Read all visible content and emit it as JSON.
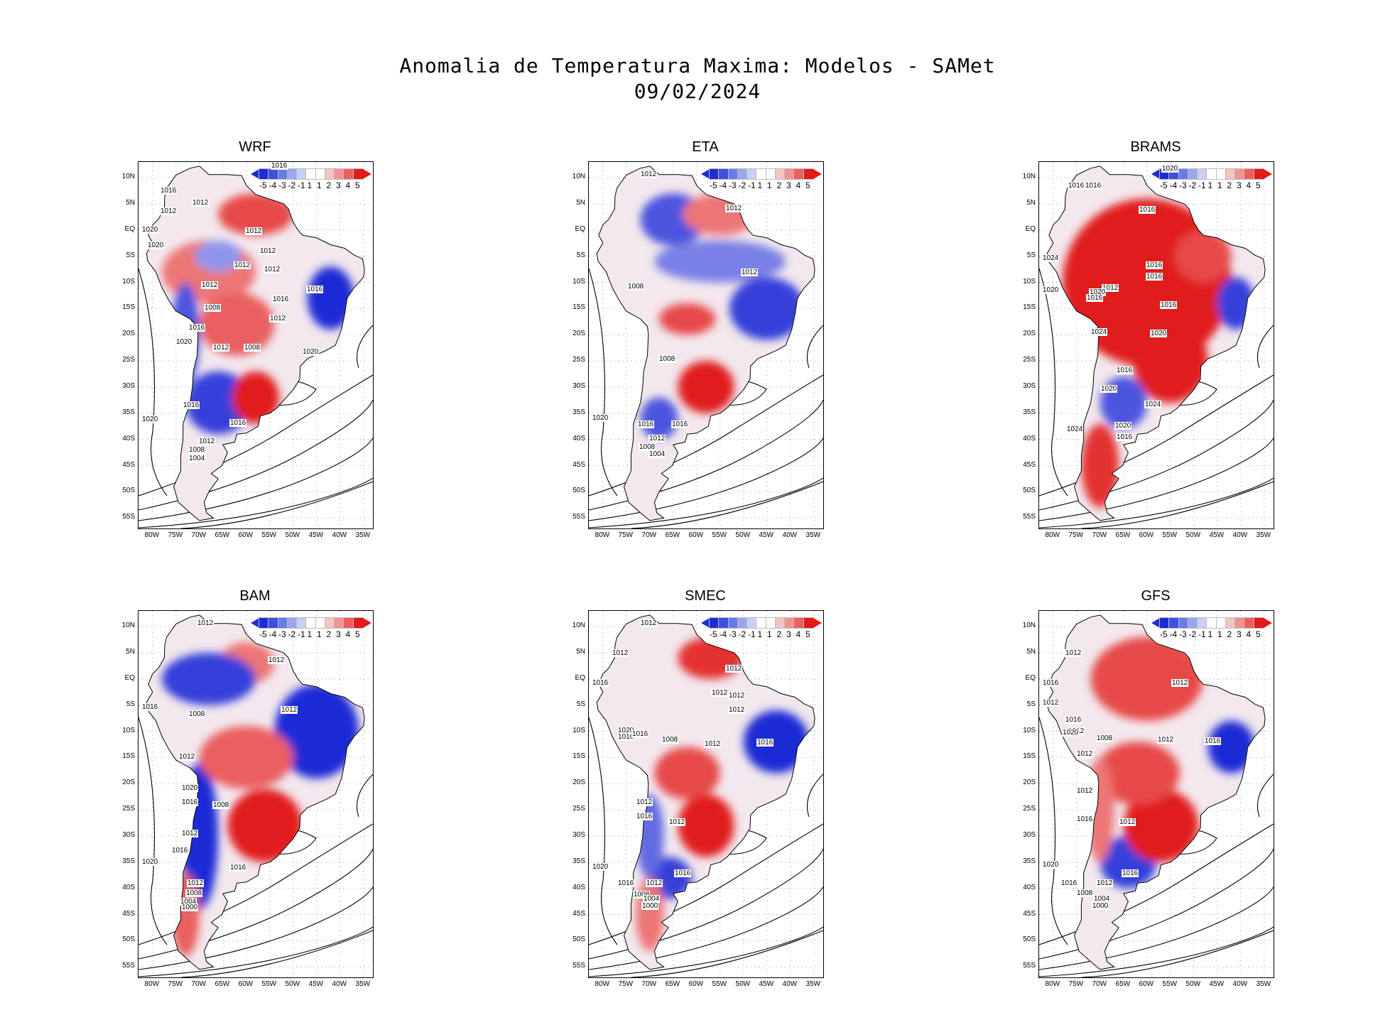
{
  "title": {
    "line1": "Anomalia de Temperatura Maxima: Modelos - SAMet",
    "line2": "09/02/2024"
  },
  "colors": {
    "strong_blue": "#1f2bd6",
    "mid_blue": "#7b8cf0",
    "light_blue": "#c9cff5",
    "white": "#ffffff",
    "light_red": "#f6c3c3",
    "mid_red": "#ef6b6b",
    "strong_red": "#e11a1a"
  },
  "colorbar": {
    "labels": [
      "-5",
      "-4",
      "-3",
      "-2",
      "-1",
      "1",
      "1",
      "2",
      "3",
      "4",
      "5"
    ],
    "colors": [
      "#1f2bd6",
      "#3d4fe0",
      "#6a7be9",
      "#9aa6f0",
      "#c9cff5",
      "#ffffff",
      "#ffffff",
      "#f6c3c3",
      "#f29292",
      "#ec5f5f",
      "#e11a1a"
    ]
  },
  "axes": {
    "lat_labels": [
      "10N",
      "5N",
      "EQ",
      "5S",
      "10S",
      "15S",
      "20S",
      "25S",
      "30S",
      "35S",
      "40S",
      "45S",
      "50S",
      "55S"
    ],
    "lon_labels": [
      "80W",
      "75W",
      "70W",
      "65W",
      "60W",
      "55W",
      "50W",
      "45W",
      "40W",
      "35W"
    ]
  },
  "panels": [
    {
      "name": "WRF",
      "isobar_labels": [
        "1016",
        "1016",
        "1012",
        "1012",
        "1020",
        "1020",
        "1012",
        "1012",
        "1012",
        "1016",
        "1012",
        "1012",
        "1016",
        "1008",
        "1016",
        "1012",
        "1020",
        "1012",
        "1008",
        "1020",
        "1016",
        "1016",
        "1020",
        "1012",
        "1008",
        "1004"
      ]
    },
    {
      "name": "ETA",
      "isobar_labels": [
        "1012",
        "1012",
        "1012",
        "1008",
        "1008",
        "1016",
        "1020",
        "1016",
        "1012",
        "1008",
        "1004"
      ]
    },
    {
      "name": "BRAMS",
      "isobar_labels": [
        "1020",
        "1016",
        "1016",
        "1016",
        "1024",
        "1016",
        "1016",
        "1020",
        "1012",
        "1020",
        "1016",
        "1016",
        "1024",
        "1020",
        "1016",
        "1020",
        "1024",
        "1024",
        "1020",
        "1016"
      ]
    },
    {
      "name": "BAM",
      "isobar_labels": [
        "1012",
        "1012",
        "1016",
        "1012",
        "1008",
        "1012",
        "1020",
        "1016",
        "1008",
        "1012",
        "1016",
        "1020",
        "1016",
        "1012",
        "1008",
        "1004",
        "1000"
      ]
    },
    {
      "name": "SMEC",
      "isobar_labels": [
        "1012",
        "1012",
        "1012",
        "1016",
        "1012",
        "1012",
        "1012",
        "1020",
        "1016",
        "1016",
        "1008",
        "1012",
        "1016",
        "1012",
        "1016",
        "1012",
        "1020",
        "1016",
        "1016",
        "1012",
        "1008",
        "1004",
        "1000"
      ]
    },
    {
      "name": "GFS",
      "isobar_labels": [
        "1012",
        "1012",
        "1016",
        "1012",
        "1016",
        "1012",
        "1020",
        "1008",
        "1012",
        "1016",
        "1012",
        "1012",
        "1016",
        "1012",
        "1020",
        "1016",
        "1016",
        "1012",
        "1008",
        "1004",
        "1000"
      ]
    }
  ]
}
